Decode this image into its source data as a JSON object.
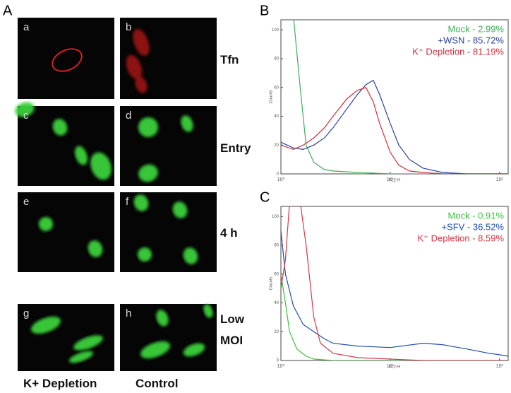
{
  "panel_a": {
    "label": "A",
    "images": [
      "a",
      "b",
      "c",
      "d",
      "e",
      "f",
      "g",
      "h"
    ],
    "rows": [
      "Tfn",
      "Entry",
      "4 h",
      "Low MOI"
    ],
    "columns": [
      "K+ Depletion",
      "Control"
    ]
  },
  "chart_data": [
    {
      "type": "line",
      "panel": "B",
      "xlabel": "FL2-H",
      "ylabel": "Counts",
      "log_x": true,
      "xlim": [
        1,
        120
      ],
      "ylim": [
        0,
        107
      ],
      "xticks": [
        {
          "value": 1,
          "label": "10⁰"
        },
        {
          "value": 10,
          "label": "10¹"
        },
        {
          "value": 100,
          "label": "10²"
        }
      ],
      "yticks": [
        0,
        20,
        40,
        60,
        80,
        100
      ],
      "series": [
        {
          "name": "Mock - 2.99%",
          "color": "#3fae5a",
          "x": [
            1,
            1.3,
            1.5,
            1.7,
            2,
            2.5,
            3,
            5,
            10,
            50,
            120
          ],
          "values": [
            110,
            110,
            60,
            20,
            8,
            3,
            2,
            1,
            0,
            0,
            0
          ]
        },
        {
          "name": "+WSN - 85.72%",
          "color": "#2a3f9a",
          "x": [
            1,
            1.3,
            1.6,
            2,
            2.5,
            3,
            4,
            5,
            6,
            7,
            8,
            10,
            12,
            15,
            20,
            30,
            50,
            120
          ],
          "values": [
            22,
            18,
            17,
            20,
            25,
            32,
            45,
            55,
            62,
            65,
            55,
            35,
            20,
            10,
            4,
            1,
            0,
            0
          ]
        },
        {
          "name": "K⁺ Depletion - 81.19%",
          "color": "#c8323c",
          "x": [
            1,
            1.3,
            1.6,
            2,
            2.5,
            3,
            4,
            5,
            6,
            7,
            8,
            10,
            12,
            15,
            20,
            30,
            120
          ],
          "values": [
            20,
            17,
            20,
            25,
            32,
            40,
            52,
            58,
            60,
            50,
            35,
            15,
            6,
            2,
            1,
            0,
            0
          ]
        }
      ]
    },
    {
      "type": "line",
      "panel": "C",
      "xlabel": "FL2-H",
      "ylabel": "Counts",
      "log_x": true,
      "xlim": [
        1,
        120
      ],
      "ylim": [
        0,
        107
      ],
      "xticks": [
        {
          "value": 1,
          "label": "10⁰"
        },
        {
          "value": 10,
          "label": "10¹"
        },
        {
          "value": 100,
          "label": "10²"
        }
      ],
      "yticks": [
        0,
        20,
        40,
        60,
        80,
        100
      ],
      "series": [
        {
          "name": "Mock - 0.91%",
          "color": "#3fbf3f",
          "x": [
            1,
            1.1,
            1.2,
            1.4,
            1.7,
            2,
            3,
            10,
            120
          ],
          "values": [
            60,
            40,
            20,
            8,
            3,
            1,
            0,
            0,
            0
          ]
        },
        {
          "name": "+SFV - 36.52%",
          "color": "#1f4ea8",
          "x": [
            1,
            1.1,
            1.3,
            1.6,
            2,
            2.5,
            3,
            5,
            10,
            20,
            30,
            50,
            80,
            100,
            120
          ],
          "values": [
            90,
            60,
            38,
            25,
            20,
            15,
            12,
            10,
            9,
            12,
            11,
            8,
            5,
            4,
            3
          ]
        },
        {
          "name": "K⁺ Depletion - 8.59%",
          "color": "#d23a4a",
          "x": [
            1,
            1.1,
            1.2,
            1.5,
            1.7,
            2,
            2.3,
            3,
            5,
            10,
            20,
            120
          ],
          "values": [
            50,
            70,
            110,
            110,
            80,
            30,
            12,
            5,
            2,
            1,
            0,
            0
          ]
        }
      ]
    }
  ]
}
